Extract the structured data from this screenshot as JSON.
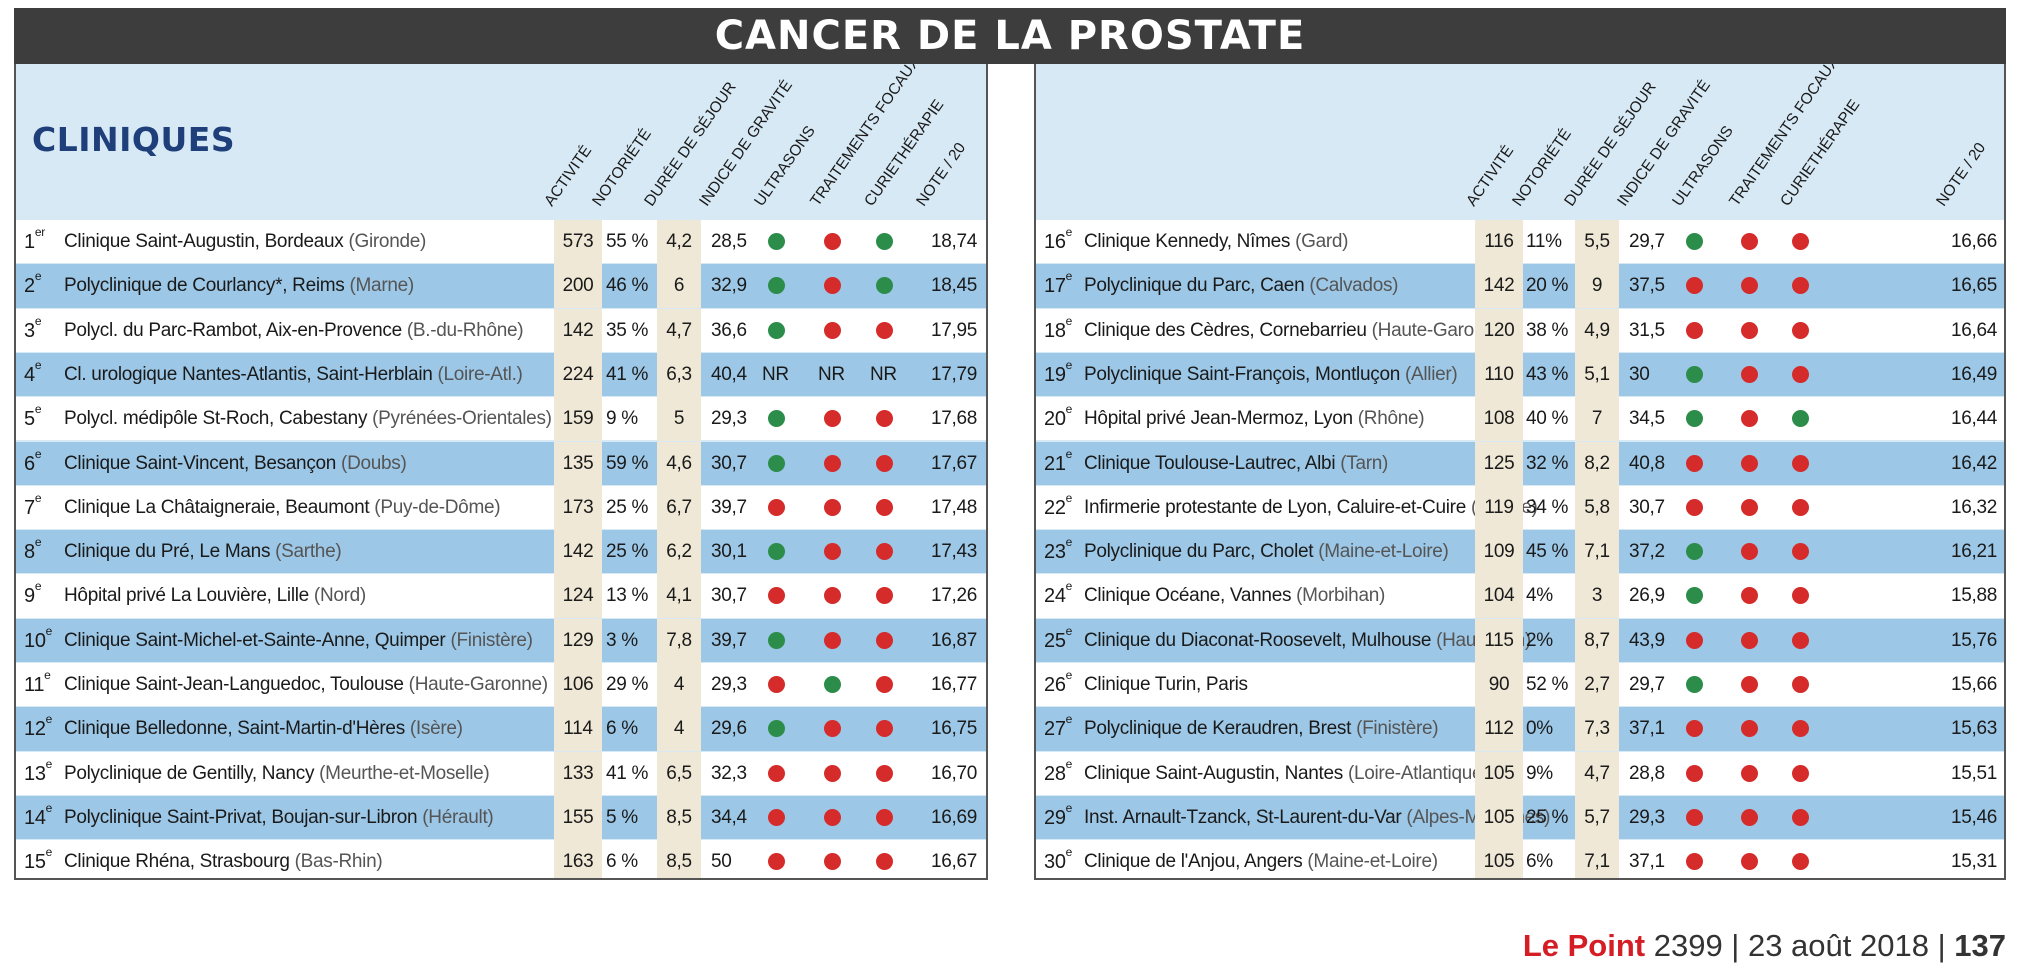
{
  "title": "CANCER DE LA PROSTATE",
  "section": "CLINIQUES",
  "columns": [
    "ACTIVITÉ",
    "NOTORIÉTÉ",
    "DURÉE DE SÉJOUR",
    "INDICE DE GRAVITÉ",
    "ULTRASONS",
    "TRAITEMENTS FOCAUX",
    "CURIETHÉRAPIE",
    "NOTE / 20"
  ],
  "dot_colors": {
    "red": "#d52b2b",
    "green": "#2c8d4a"
  },
  "band_color": "#9cc7e6",
  "left_rows": [
    {
      "rank": "1",
      "sup": "er",
      "name": "Clinique Saint-Augustin, Bordeaux",
      "region": "(Gironde)",
      "activite": "573",
      "notoriete": "55 %",
      "duree": "4,2",
      "indice": "28,5",
      "ultrasons": "green",
      "focaux": "red",
      "curie": "green",
      "note": "18,74"
    },
    {
      "rank": "2",
      "sup": "e",
      "name": "Polyclinique de Courlancy*, Reims",
      "region": "(Marne)",
      "activite": "200",
      "notoriete": "46 %",
      "duree": "6",
      "indice": "32,9",
      "ultrasons": "green",
      "focaux": "red",
      "curie": "green",
      "note": "18,45"
    },
    {
      "rank": "3",
      "sup": "e",
      "name": "Polycl. du Parc-Rambot, Aix-en-Provence",
      "region": "(B.-du-Rhône)",
      "activite": "142",
      "notoriete": "35 %",
      "duree": "4,7",
      "indice": "36,6",
      "ultrasons": "green",
      "focaux": "red",
      "curie": "red",
      "note": "17,95"
    },
    {
      "rank": "4",
      "sup": "e",
      "name": "Cl. urologique Nantes-Atlantis, Saint-Herblain",
      "region": "(Loire-Atl.)",
      "activite": "224",
      "notoriete": "41 %",
      "duree": "6,3",
      "indice": "40,4",
      "ultrasons": "NR",
      "focaux": "NR",
      "curie": "NR",
      "note": "17,79"
    },
    {
      "rank": "5",
      "sup": "e",
      "name": "Polycl. médipôle St-Roch, Cabestany",
      "region": "(Pyrénées-Orientales)",
      "activite": "159",
      "notoriete": "9 %",
      "duree": "5",
      "indice": "29,3",
      "ultrasons": "green",
      "focaux": "red",
      "curie": "red",
      "note": "17,68"
    },
    {
      "rank": "6",
      "sup": "e",
      "name": "Clinique Saint-Vincent, Besançon",
      "region": "(Doubs)",
      "activite": "135",
      "notoriete": "59 %",
      "duree": "4,6",
      "indice": "30,7",
      "ultrasons": "green",
      "focaux": "red",
      "curie": "red",
      "note": "17,67"
    },
    {
      "rank": "7",
      "sup": "e",
      "name": "Clinique La Châtaigneraie, Beaumont",
      "region": "(Puy-de-Dôme)",
      "activite": "173",
      "notoriete": "25 %",
      "duree": "6,7",
      "indice": "39,7",
      "ultrasons": "red",
      "focaux": "red",
      "curie": "red",
      "note": "17,48"
    },
    {
      "rank": "8",
      "sup": "e",
      "name": "Clinique du Pré, Le Mans",
      "region": "(Sarthe)",
      "activite": "142",
      "notoriete": "25 %",
      "duree": "6,2",
      "indice": "30,1",
      "ultrasons": "green",
      "focaux": "red",
      "curie": "red",
      "note": "17,43"
    },
    {
      "rank": "9",
      "sup": "e",
      "name": "Hôpital privé La Louvière, Lille",
      "region": "(Nord)",
      "activite": "124",
      "notoriete": "13 %",
      "duree": "4,1",
      "indice": "30,7",
      "ultrasons": "red",
      "focaux": "red",
      "curie": "red",
      "note": "17,26"
    },
    {
      "rank": "10",
      "sup": "e",
      "name": "Clinique Saint-Michel-et-Sainte-Anne, Quimper",
      "region": "(Finistère)",
      "activite": "129",
      "notoriete": "3 %",
      "duree": "7,8",
      "indice": "39,7",
      "ultrasons": "green",
      "focaux": "red",
      "curie": "red",
      "note": "16,87"
    },
    {
      "rank": "11",
      "sup": "e",
      "name": "Clinique Saint-Jean-Languedoc, Toulouse",
      "region": "(Haute-Garonne)",
      "activite": "106",
      "notoriete": "29 %",
      "duree": "4",
      "indice": "29,3",
      "ultrasons": "red",
      "focaux": "green",
      "curie": "red",
      "note": "16,77"
    },
    {
      "rank": "12",
      "sup": "e",
      "name": "Clinique Belledonne, Saint-Martin-d'Hères",
      "region": "(Isère)",
      "activite": "114",
      "notoriete": "6 %",
      "duree": "4",
      "indice": "29,6",
      "ultrasons": "green",
      "focaux": "red",
      "curie": "red",
      "note": "16,75"
    },
    {
      "rank": "13",
      "sup": "e",
      "name": "Polyclinique de Gentilly, Nancy",
      "region": "(Meurthe-et-Moselle)",
      "activite": "133",
      "notoriete": "41 %",
      "duree": "6,5",
      "indice": "32,3",
      "ultrasons": "red",
      "focaux": "red",
      "curie": "red",
      "note": "16,70"
    },
    {
      "rank": "14",
      "sup": "e",
      "name": "Polyclinique Saint-Privat, Boujan-sur-Libron",
      "region": "(Hérault)",
      "activite": "155",
      "notoriete": "5 %",
      "duree": "8,5",
      "indice": "34,4",
      "ultrasons": "red",
      "focaux": "red",
      "curie": "red",
      "note": "16,69"
    },
    {
      "rank": "15",
      "sup": "e",
      "name": "Clinique Rhéna, Strasbourg",
      "region": "(Bas-Rhin)",
      "activite": "163",
      "notoriete": "6 %",
      "duree": "8,5",
      "indice": "50",
      "ultrasons": "red",
      "focaux": "red",
      "curie": "red",
      "note": "16,67"
    }
  ],
  "right_rows": [
    {
      "rank": "16",
      "sup": "e",
      "name": "Clinique Kennedy, Nîmes",
      "region": "(Gard)",
      "activite": "116",
      "notoriete": "11%",
      "duree": "5,5",
      "indice": "29,7",
      "ultrasons": "green",
      "focaux": "red",
      "curie": "red",
      "note": "16,66"
    },
    {
      "rank": "17",
      "sup": "e",
      "name": "Polyclinique du Parc, Caen",
      "region": "(Calvados)",
      "activite": "142",
      "notoriete": "20 %",
      "duree": "9",
      "indice": "37,5",
      "ultrasons": "red",
      "focaux": "red",
      "curie": "red",
      "note": "16,65"
    },
    {
      "rank": "18",
      "sup": "e",
      "name": "Clinique des Cèdres, Cornebarrieu",
      "region": "(Haute-Garonne)",
      "activite": "120",
      "notoriete": "38 %",
      "duree": "4,9",
      "indice": "31,5",
      "ultrasons": "red",
      "focaux": "red",
      "curie": "red",
      "note": "16,64"
    },
    {
      "rank": "19",
      "sup": "e",
      "name": "Polyclinique Saint-François, Montluçon",
      "region": "(Allier)",
      "activite": "110",
      "notoriete": "43 %",
      "duree": "5,1",
      "indice": "30",
      "ultrasons": "green",
      "focaux": "red",
      "curie": "red",
      "note": "16,49"
    },
    {
      "rank": "20",
      "sup": "e",
      "name": "Hôpital privé Jean-Mermoz, Lyon",
      "region": "(Rhône)",
      "activite": "108",
      "notoriete": "40 %",
      "duree": "7",
      "indice": "34,5",
      "ultrasons": "green",
      "focaux": "red",
      "curie": "green",
      "note": "16,44"
    },
    {
      "rank": "21",
      "sup": "e",
      "name": "Clinique Toulouse-Lautrec, Albi",
      "region": "(Tarn)",
      "activite": "125",
      "notoriete": "32 %",
      "duree": "8,2",
      "indice": "40,8",
      "ultrasons": "red",
      "focaux": "red",
      "curie": "red",
      "note": "16,42"
    },
    {
      "rank": "22",
      "sup": "e",
      "name": "Infirmerie protestante de Lyon, Caluire-et-Cuire",
      "region": "(Rhône)",
      "activite": "119",
      "notoriete": "34 %",
      "duree": "5,8",
      "indice": "30,7",
      "ultrasons": "red",
      "focaux": "red",
      "curie": "red",
      "note": "16,32"
    },
    {
      "rank": "23",
      "sup": "e",
      "name": "Polyclinique du Parc, Cholet",
      "region": "(Maine-et-Loire)",
      "activite": "109",
      "notoriete": "45 %",
      "duree": "7,1",
      "indice": "37,2",
      "ultrasons": "green",
      "focaux": "red",
      "curie": "red",
      "note": "16,21"
    },
    {
      "rank": "24",
      "sup": "e",
      "name": "Clinique Océane, Vannes",
      "region": "(Morbihan)",
      "activite": "104",
      "notoriete": "4%",
      "duree": "3",
      "indice": "26,9",
      "ultrasons": "green",
      "focaux": "red",
      "curie": "red",
      "note": "15,88"
    },
    {
      "rank": "25",
      "sup": "e",
      "name": "Clinique du Diaconat-Roosevelt, Mulhouse",
      "region": "(Haut-Rhin)",
      "activite": "115",
      "notoriete": "2%",
      "duree": "8,7",
      "indice": "43,9",
      "ultrasons": "red",
      "focaux": "red",
      "curie": "red",
      "note": "15,76"
    },
    {
      "rank": "26",
      "sup": "e",
      "name": "Clinique Turin, Paris",
      "region": "",
      "activite": "90",
      "notoriete": "52 %",
      "duree": "2,7",
      "indice": "29,7",
      "ultrasons": "green",
      "focaux": "red",
      "curie": "red",
      "note": "15,66"
    },
    {
      "rank": "27",
      "sup": "e",
      "name": "Polyclinique de Keraudren, Brest",
      "region": "(Finistère)",
      "activite": "112",
      "notoriete": "0%",
      "duree": "7,3",
      "indice": "37,1",
      "ultrasons": "red",
      "focaux": "red",
      "curie": "red",
      "note": "15,63"
    },
    {
      "rank": "28",
      "sup": "e",
      "name": "Clinique Saint-Augustin, Nantes",
      "region": "(Loire-Atlantique)",
      "activite": "105",
      "notoriete": "9%",
      "duree": "4,7",
      "indice": "28,8",
      "ultrasons": "red",
      "focaux": "red",
      "curie": "red",
      "note": "15,51"
    },
    {
      "rank": "29",
      "sup": "e",
      "name": "Inst. Arnault-Tzanck, St-Laurent-du-Var",
      "region": "(Alpes-Maritimes)",
      "activite": "105",
      "notoriete": "25 %",
      "duree": "5,7",
      "indice": "29,3",
      "ultrasons": "red",
      "focaux": "red",
      "curie": "red",
      "note": "15,46"
    },
    {
      "rank": "30",
      "sup": "e",
      "name": "Clinique de l'Anjou, Angers",
      "region": "(Maine-et-Loire)",
      "activite": "105",
      "notoriete": "6%",
      "duree": "7,1",
      "indice": "37,1",
      "ultrasons": "red",
      "focaux": "red",
      "curie": "red",
      "note": "15,31"
    }
  ],
  "footer": {
    "brand": "Le Point",
    "issue": "2399 | 23 août 2018 |",
    "page": "137"
  }
}
